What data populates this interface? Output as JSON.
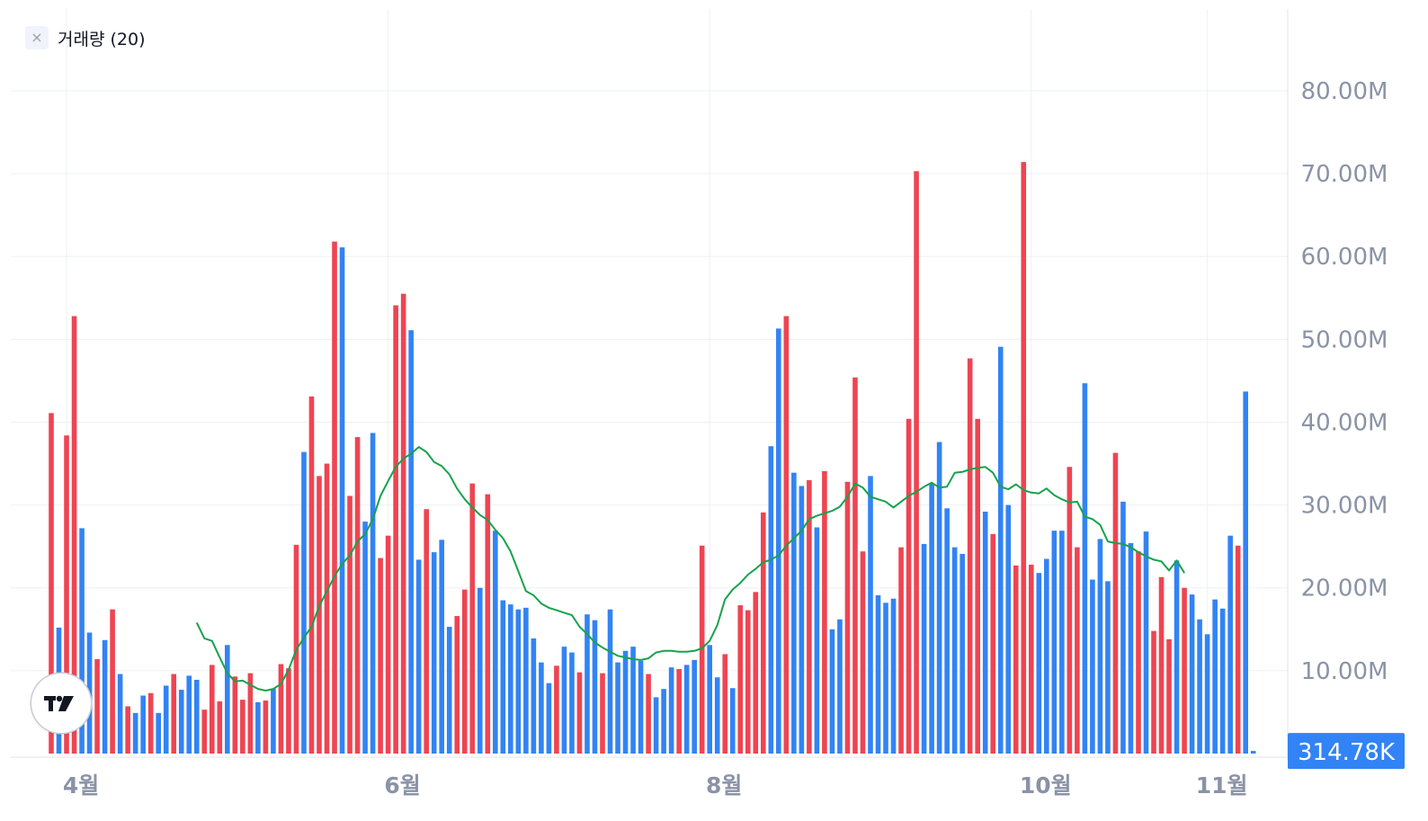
{
  "legend": {
    "close_symbol": "×",
    "label": "거래량 (20)"
  },
  "logo": {
    "icon": "tradingview-logo-icon"
  },
  "colors": {
    "up": "#ef4452",
    "down": "#3283f5",
    "ma": "#16a34a",
    "grid": "#eef0f3",
    "axis_text": "#8a93a6",
    "last_badge": "#3283f5"
  },
  "last_value_label": "314.78K",
  "chart_data": {
    "type": "bar",
    "title": "",
    "y_unit": "M",
    "ylim": [
      0,
      90
    ],
    "y_ticks": [
      {
        "value": 10,
        "label": "10.00M"
      },
      {
        "value": 20,
        "label": "20.00M"
      },
      {
        "value": 30,
        "label": "30.00M"
      },
      {
        "value": 40,
        "label": "40.00M"
      },
      {
        "value": 50,
        "label": "50.00M"
      },
      {
        "value": 60,
        "label": "60.00M"
      },
      {
        "value": 70,
        "label": "70.00M"
      },
      {
        "value": 80,
        "label": "80.00M"
      }
    ],
    "x_ticks": [
      {
        "index": 2,
        "label": "4월"
      },
      {
        "index": 44,
        "label": "6월"
      },
      {
        "index": 86,
        "label": "8월"
      },
      {
        "index": 128,
        "label": "10월"
      },
      {
        "index": 151,
        "label": "11월"
      }
    ],
    "grid": true,
    "volume": [
      [
        41.1,
        "u"
      ],
      [
        15.2,
        "d"
      ],
      [
        38.4,
        "u"
      ],
      [
        52.8,
        "u"
      ],
      [
        27.2,
        "d"
      ],
      [
        14.6,
        "d"
      ],
      [
        11.4,
        "u"
      ],
      [
        13.7,
        "d"
      ],
      [
        17.4,
        "u"
      ],
      [
        9.6,
        "d"
      ],
      [
        5.7,
        "u"
      ],
      [
        4.9,
        "d"
      ],
      [
        7.0,
        "d"
      ],
      [
        7.3,
        "u"
      ],
      [
        4.9,
        "d"
      ],
      [
        8.2,
        "d"
      ],
      [
        9.6,
        "u"
      ],
      [
        7.7,
        "d"
      ],
      [
        9.4,
        "d"
      ],
      [
        8.9,
        "d"
      ],
      [
        5.3,
        "u"
      ],
      [
        10.7,
        "u"
      ],
      [
        6.3,
        "u"
      ],
      [
        13.1,
        "d"
      ],
      [
        9.3,
        "u"
      ],
      [
        6.5,
        "u"
      ],
      [
        9.7,
        "u"
      ],
      [
        6.2,
        "d"
      ],
      [
        6.4,
        "u"
      ],
      [
        7.8,
        "d"
      ],
      [
        10.8,
        "u"
      ],
      [
        10.3,
        "u"
      ],
      [
        25.2,
        "u"
      ],
      [
        36.4,
        "d"
      ],
      [
        43.1,
        "u"
      ],
      [
        33.5,
        "u"
      ],
      [
        35.0,
        "u"
      ],
      [
        61.8,
        "u"
      ],
      [
        61.1,
        "d"
      ],
      [
        31.1,
        "u"
      ],
      [
        38.2,
        "u"
      ],
      [
        28.0,
        "d"
      ],
      [
        38.7,
        "d"
      ],
      [
        23.6,
        "u"
      ],
      [
        26.3,
        "u"
      ],
      [
        54.1,
        "u"
      ],
      [
        55.5,
        "u"
      ],
      [
        51.1,
        "d"
      ],
      [
        23.4,
        "d"
      ],
      [
        29.5,
        "u"
      ],
      [
        24.3,
        "d"
      ],
      [
        25.8,
        "d"
      ],
      [
        15.3,
        "d"
      ],
      [
        16.6,
        "u"
      ],
      [
        19.8,
        "u"
      ],
      [
        32.6,
        "u"
      ],
      [
        20.0,
        "d"
      ],
      [
        31.3,
        "u"
      ],
      [
        26.9,
        "d"
      ],
      [
        18.5,
        "d"
      ],
      [
        18.0,
        "d"
      ],
      [
        17.4,
        "d"
      ],
      [
        17.6,
        "d"
      ],
      [
        13.9,
        "d"
      ],
      [
        11.0,
        "d"
      ],
      [
        8.5,
        "d"
      ],
      [
        10.6,
        "u"
      ],
      [
        12.9,
        "d"
      ],
      [
        12.2,
        "d"
      ],
      [
        9.8,
        "u"
      ],
      [
        16.8,
        "d"
      ],
      [
        16.1,
        "d"
      ],
      [
        9.7,
        "u"
      ],
      [
        17.4,
        "d"
      ],
      [
        11.0,
        "d"
      ],
      [
        12.4,
        "d"
      ],
      [
        12.9,
        "d"
      ],
      [
        11.2,
        "d"
      ],
      [
        9.6,
        "u"
      ],
      [
        6.8,
        "d"
      ],
      [
        7.8,
        "d"
      ],
      [
        10.4,
        "d"
      ],
      [
        10.2,
        "u"
      ],
      [
        10.7,
        "d"
      ],
      [
        11.3,
        "d"
      ],
      [
        25.1,
        "u"
      ],
      [
        13.1,
        "d"
      ],
      [
        9.2,
        "d"
      ],
      [
        12.0,
        "u"
      ],
      [
        7.9,
        "d"
      ],
      [
        17.9,
        "u"
      ],
      [
        17.3,
        "u"
      ],
      [
        19.5,
        "u"
      ],
      [
        29.1,
        "u"
      ],
      [
        37.1,
        "d"
      ],
      [
        51.3,
        "d"
      ],
      [
        52.8,
        "u"
      ],
      [
        33.9,
        "d"
      ],
      [
        32.3,
        "d"
      ],
      [
        33.0,
        "u"
      ],
      [
        27.3,
        "d"
      ],
      [
        34.1,
        "u"
      ],
      [
        15.0,
        "d"
      ],
      [
        16.2,
        "d"
      ],
      [
        32.8,
        "u"
      ],
      [
        45.4,
        "u"
      ],
      [
        24.4,
        "u"
      ],
      [
        33.5,
        "d"
      ],
      [
        19.1,
        "d"
      ],
      [
        18.2,
        "d"
      ],
      [
        18.7,
        "d"
      ],
      [
        24.9,
        "u"
      ],
      [
        40.4,
        "u"
      ],
      [
        70.3,
        "u"
      ],
      [
        25.3,
        "d"
      ],
      [
        32.6,
        "d"
      ],
      [
        37.6,
        "d"
      ],
      [
        29.6,
        "d"
      ],
      [
        24.9,
        "d"
      ],
      [
        24.1,
        "d"
      ],
      [
        47.7,
        "u"
      ],
      [
        40.4,
        "u"
      ],
      [
        29.2,
        "d"
      ],
      [
        26.5,
        "u"
      ],
      [
        49.1,
        "d"
      ],
      [
        30.0,
        "d"
      ],
      [
        22.7,
        "u"
      ],
      [
        71.4,
        "u"
      ],
      [
        22.8,
        "u"
      ],
      [
        21.8,
        "d"
      ],
      [
        23.5,
        "d"
      ],
      [
        26.9,
        "d"
      ],
      [
        26.9,
        "d"
      ],
      [
        34.6,
        "u"
      ],
      [
        24.9,
        "u"
      ],
      [
        44.7,
        "d"
      ],
      [
        21.0,
        "d"
      ],
      [
        25.9,
        "d"
      ],
      [
        20.8,
        "d"
      ],
      [
        36.3,
        "u"
      ],
      [
        30.4,
        "d"
      ],
      [
        25.4,
        "d"
      ],
      [
        24.4,
        "u"
      ],
      [
        26.8,
        "d"
      ],
      [
        14.8,
        "u"
      ],
      [
        21.3,
        "u"
      ],
      [
        13.8,
        "u"
      ],
      [
        23.3,
        "d"
      ],
      [
        20.0,
        "u"
      ],
      [
        19.2,
        "d"
      ],
      [
        16.2,
        "d"
      ],
      [
        14.4,
        "d"
      ],
      [
        18.6,
        "d"
      ],
      [
        17.5,
        "d"
      ],
      [
        26.3,
        "d"
      ],
      [
        25.1,
        "u"
      ],
      [
        43.7,
        "d"
      ],
      [
        0.3148,
        "d"
      ]
    ],
    "ma_series": {
      "name": "",
      "start_index": 19,
      "values": [
        15.8,
        13.9,
        13.6,
        11.6,
        9.7,
        8.7,
        8.8,
        8.3,
        7.8,
        7.6,
        7.8,
        8.4,
        10.1,
        12.5,
        14.0,
        15.3,
        17.8,
        19.6,
        21.4,
        22.9,
        23.9,
        25.6,
        26.5,
        28.3,
        31.1,
        32.9,
        34.6,
        35.6,
        36.2,
        37.0,
        36.4,
        35.2,
        34.7,
        33.7,
        32.0,
        30.7,
        29.7,
        28.8,
        28.2,
        27.0,
        26.0,
        24.4,
        22.0,
        19.6,
        19.1,
        18.1,
        17.6,
        17.3,
        17.0,
        16.7,
        15.3,
        14.4,
        13.4,
        12.8,
        12.3,
        11.8,
        11.6,
        11.4,
        11.3,
        11.5,
        12.2,
        12.4,
        12.4,
        12.3,
        12.3,
        12.4,
        12.7,
        13.6,
        15.5,
        18.6,
        19.8,
        20.6,
        21.6,
        22.3,
        23.1,
        23.4,
        23.9,
        25.1,
        26.0,
        26.9,
        28.3,
        28.7,
        29.0,
        29.3,
        29.8,
        31.0,
        32.6,
        32.1,
        31.0,
        30.7,
        30.4,
        29.7,
        30.4,
        31.1,
        31.6,
        32.2,
        32.7,
        32.1,
        32.2,
        33.9,
        34.0,
        34.3,
        34.5,
        34.6,
        33.9,
        32.2,
        31.9,
        32.5,
        31.8,
        31.5,
        31.4,
        32.0,
        31.2,
        30.7,
        30.3,
        30.4,
        28.6,
        28.3,
        27.6,
        25.6,
        25.4,
        25.3,
        24.9,
        24.3,
        23.8,
        23.4,
        23.2,
        22.1,
        23.3,
        21.8
      ]
    }
  }
}
